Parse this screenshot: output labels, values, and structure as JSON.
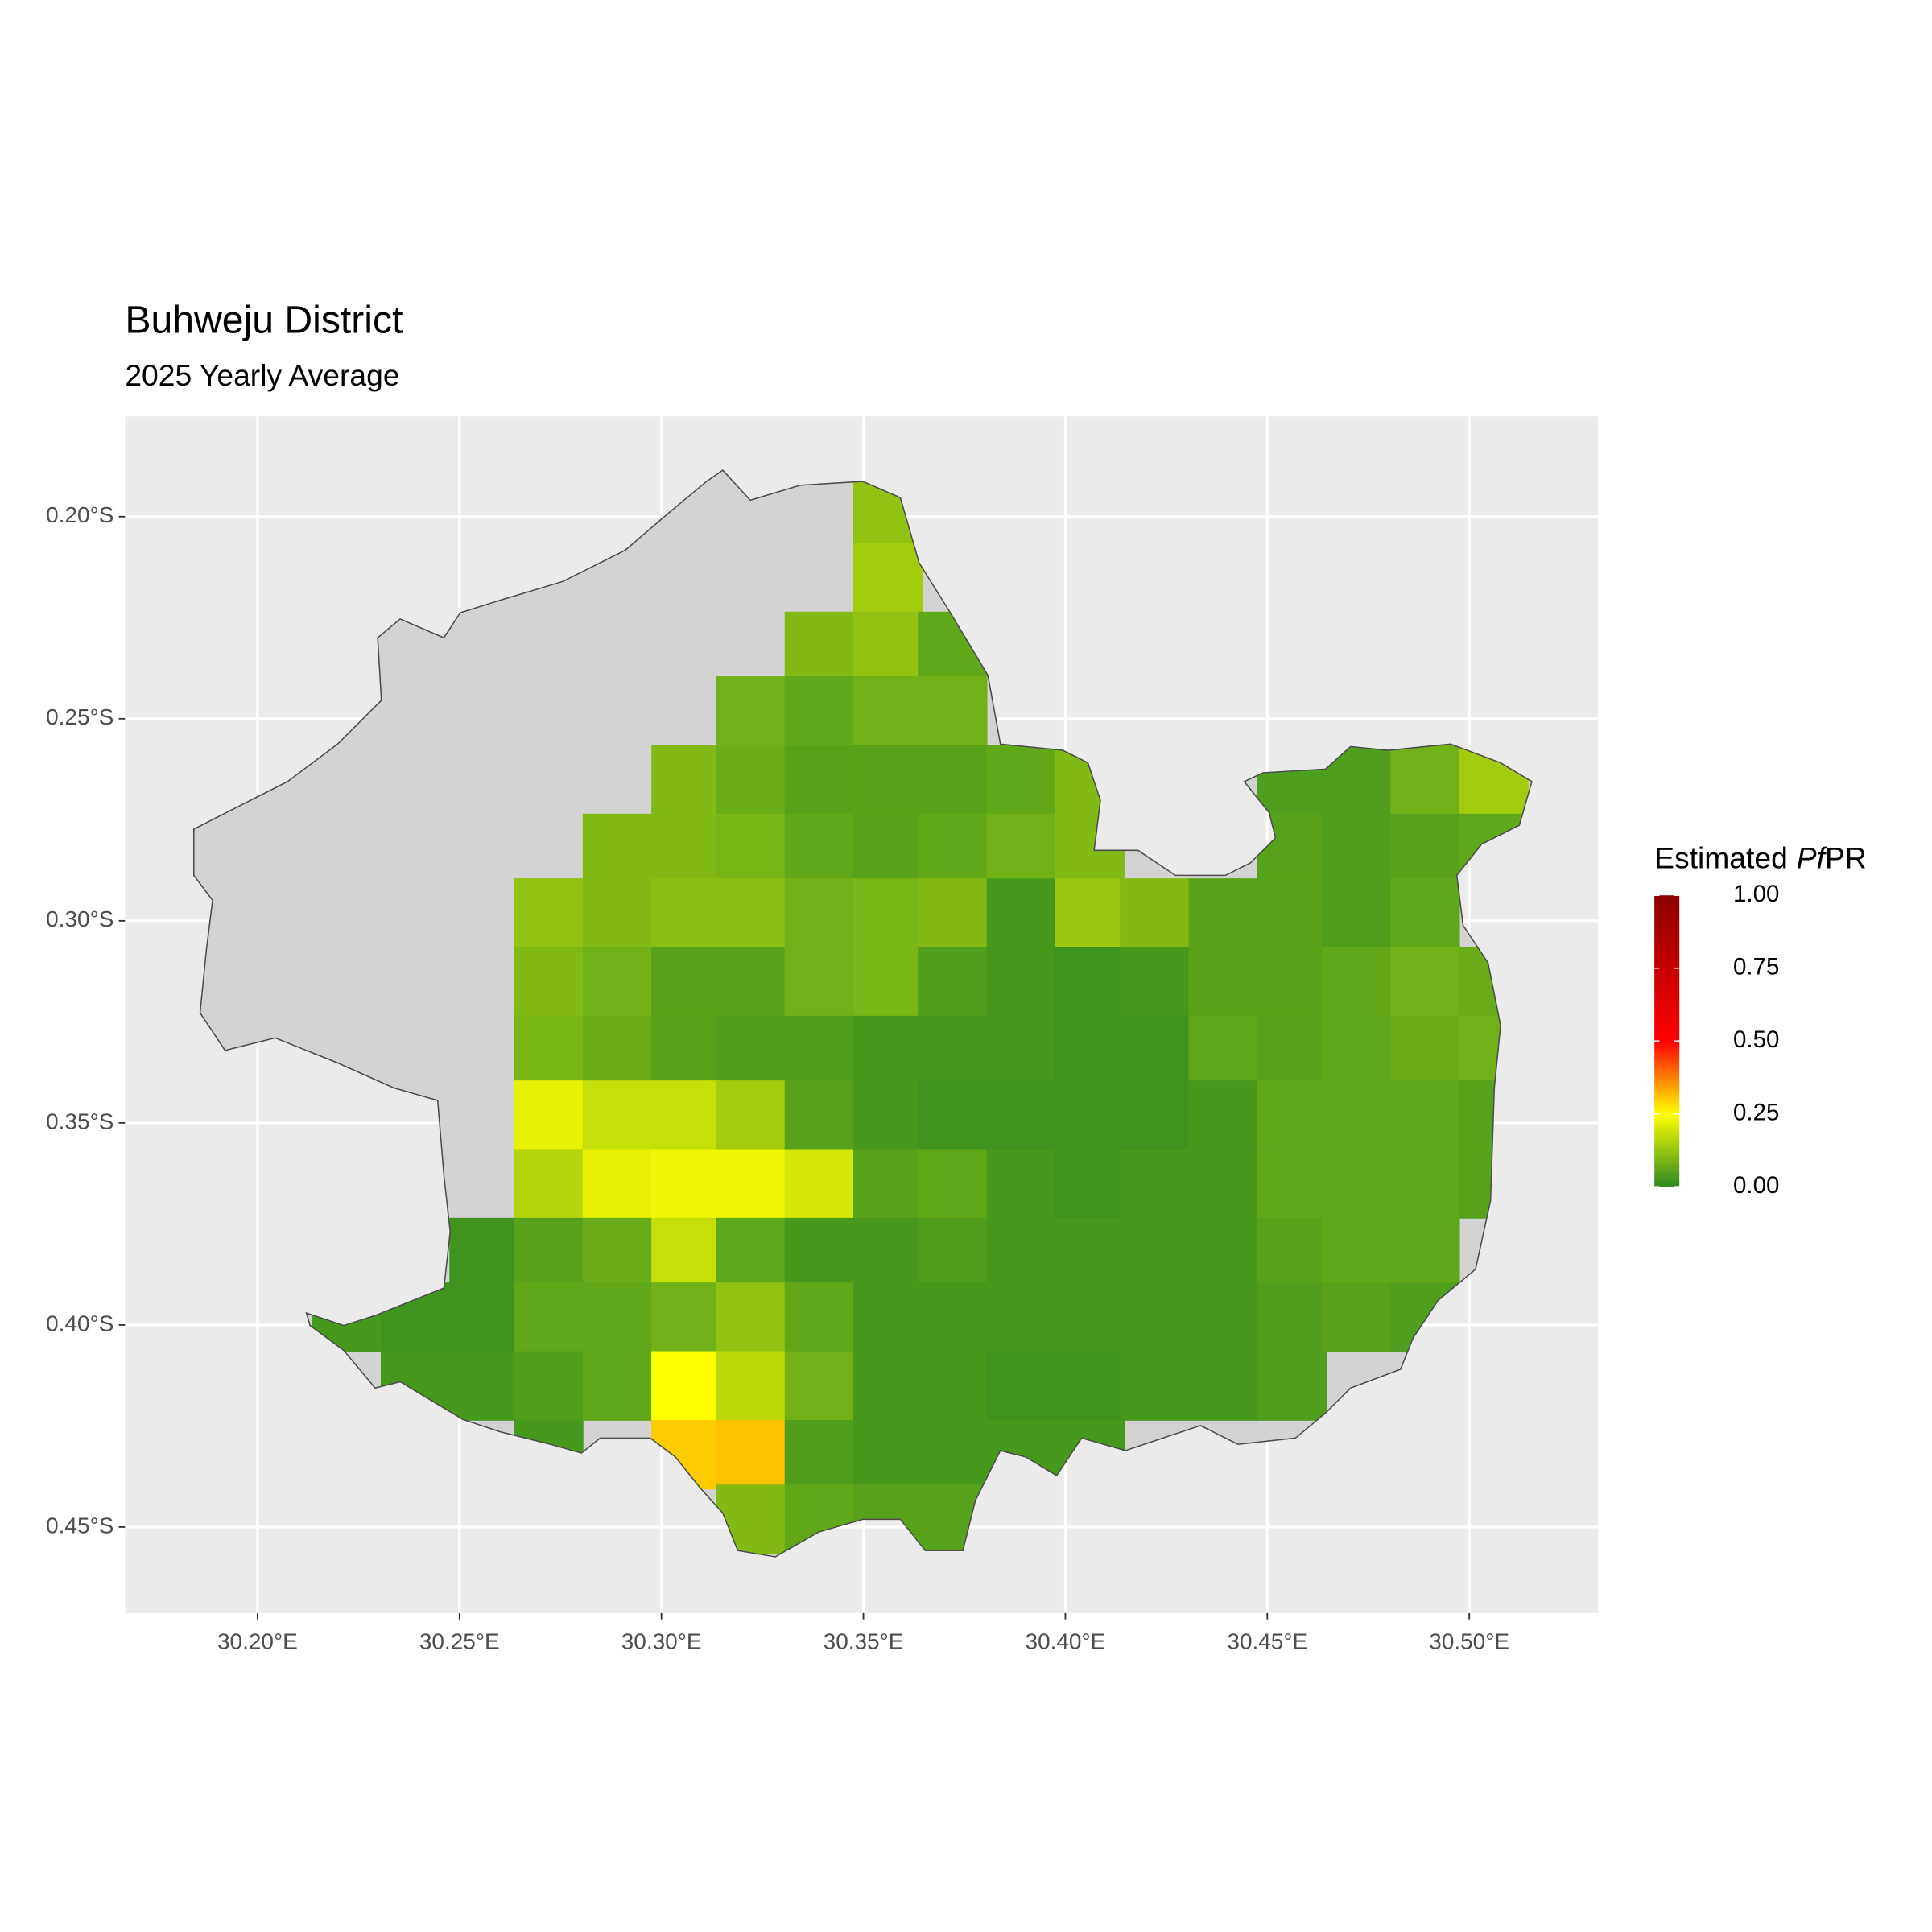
{
  "chart_data": {
    "type": "raster",
    "title": "Buhweju District",
    "subtitle": "2025 Yearly Average",
    "legend_title": [
      "Estimated",
      "Pf",
      "PR"
    ],
    "xlim": [
      30.1672,
      30.5319
    ],
    "ylim": [
      -0.4713,
      -0.1752
    ],
    "xticks": [
      {
        "value": 30.2,
        "label": "30.20°E"
      },
      {
        "value": 30.25,
        "label": "30.25°E"
      },
      {
        "value": 30.3,
        "label": "30.30°E"
      },
      {
        "value": 30.35,
        "label": "30.35°E"
      },
      {
        "value": 30.4,
        "label": "30.40°E"
      },
      {
        "value": 30.45,
        "label": "30.45°E"
      },
      {
        "value": 30.5,
        "label": "30.50°E"
      }
    ],
    "yticks": [
      {
        "value": -0.2,
        "label": "0.20°S"
      },
      {
        "value": -0.25,
        "label": "0.25°S"
      },
      {
        "value": -0.3,
        "label": "0.30°S"
      },
      {
        "value": -0.35,
        "label": "0.35°S"
      },
      {
        "value": -0.4,
        "label": "0.40°S"
      },
      {
        "value": -0.45,
        "label": "0.45°S"
      }
    ],
    "grid": true,
    "colorscale": [
      {
        "value": 0,
        "color": "#2e8b22"
      },
      {
        "value": 0.25,
        "color": "#ffff00"
      },
      {
        "value": 0.5,
        "color": "#ff0000"
      },
      {
        "value": 1,
        "color": "#8b0000"
      }
    ],
    "colorbar_lim": [
      0,
      1
    ],
    "colorbar_ticks": [
      {
        "value": 0,
        "label": "0.00"
      },
      {
        "value": 0.25,
        "label": "0.25"
      },
      {
        "value": 0.5,
        "label": "0.50"
      },
      {
        "value": 0.75,
        "label": "0.75"
      },
      {
        "value": 1,
        "label": "1.00"
      }
    ],
    "x": [
      30.222,
      30.239,
      30.256,
      30.272,
      30.289,
      30.306,
      30.322,
      30.339,
      30.356,
      30.372,
      30.389,
      30.406,
      30.422,
      30.439,
      30.456,
      30.472,
      30.489,
      30.506
    ],
    "y": [
      -0.198,
      -0.215,
      -0.232,
      -0.248,
      -0.265,
      -0.282,
      -0.298,
      -0.315,
      -0.332,
      -0.348,
      -0.365,
      -0.382,
      -0.398,
      -0.415,
      -0.432,
      -0.448
    ],
    "values": [
      [
        null,
        null,
        null,
        null,
        null,
        null,
        null,
        null,
        0.12,
        null,
        null,
        null,
        null,
        null,
        null,
        null,
        null,
        null
      ],
      [
        null,
        null,
        null,
        null,
        null,
        null,
        null,
        null,
        0.14,
        null,
        null,
        null,
        null,
        null,
        null,
        null,
        null,
        null
      ],
      [
        null,
        null,
        null,
        null,
        null,
        null,
        null,
        0.1,
        0.12,
        0.06,
        null,
        null,
        null,
        null,
        null,
        null,
        null,
        null
      ],
      [
        null,
        null,
        null,
        null,
        null,
        null,
        0.08,
        0.06,
        0.08,
        0.08,
        null,
        null,
        null,
        null,
        null,
        null,
        null,
        null
      ],
      [
        null,
        null,
        null,
        null,
        null,
        0.1,
        0.07,
        0.05,
        0.05,
        0.05,
        0.06,
        0.1,
        null,
        null,
        0.04,
        0.04,
        0.08,
        0.14
      ],
      [
        null,
        null,
        null,
        null,
        0.1,
        0.1,
        0.09,
        0.06,
        0.05,
        0.06,
        0.08,
        0.1,
        null,
        null,
        0.05,
        0.04,
        0.05,
        0.06
      ],
      [
        null,
        null,
        null,
        0.12,
        0.1,
        0.11,
        0.11,
        0.08,
        0.09,
        0.1,
        0.03,
        0.13,
        0.1,
        0.05,
        0.05,
        0.04,
        0.06,
        null
      ],
      [
        null,
        null,
        null,
        0.1,
        0.08,
        0.05,
        0.05,
        0.08,
        0.09,
        0.04,
        0.03,
        0.02,
        0.03,
        0.05,
        0.05,
        0.06,
        0.08,
        0.07
      ],
      [
        null,
        null,
        null,
        0.09,
        0.07,
        0.05,
        0.04,
        0.04,
        0.03,
        0.03,
        0.03,
        0.02,
        0.02,
        0.06,
        0.05,
        0.06,
        0.07,
        0.08
      ],
      [
        null,
        null,
        null,
        0.22,
        0.18,
        0.18,
        0.14,
        0.05,
        0.03,
        0.02,
        0.02,
        0.02,
        0.02,
        0.03,
        0.06,
        0.06,
        0.06,
        0.05
      ],
      [
        null,
        null,
        null,
        0.16,
        0.22,
        0.23,
        0.23,
        0.2,
        0.05,
        0.06,
        0.03,
        0.02,
        0.03,
        0.03,
        0.06,
        0.06,
        0.06,
        0.05
      ],
      [
        null,
        null,
        0.02,
        0.05,
        0.07,
        0.18,
        0.06,
        0.03,
        0.03,
        0.04,
        0.03,
        0.03,
        0.03,
        0.03,
        0.05,
        0.06,
        0.06,
        null
      ],
      [
        0.03,
        0.02,
        0.02,
        0.06,
        0.06,
        0.08,
        0.12,
        0.06,
        0.03,
        0.03,
        0.03,
        0.03,
        0.03,
        0.03,
        0.04,
        0.05,
        0.04,
        null
      ],
      [
        null,
        0.03,
        0.03,
        0.04,
        0.06,
        0.25,
        0.17,
        0.08,
        0.03,
        0.03,
        0.02,
        0.02,
        0.03,
        0.03,
        0.04,
        null,
        null,
        null
      ],
      [
        null,
        null,
        null,
        0.03,
        null,
        0.3,
        0.31,
        0.04,
        0.03,
        0.03,
        0.03,
        0.03,
        null,
        null,
        null,
        null,
        null,
        null
      ],
      [
        null,
        null,
        null,
        null,
        null,
        null,
        0.1,
        0.06,
        0.05,
        0.05,
        null,
        null,
        null,
        null,
        null,
        null,
        null,
        null
      ]
    ]
  }
}
